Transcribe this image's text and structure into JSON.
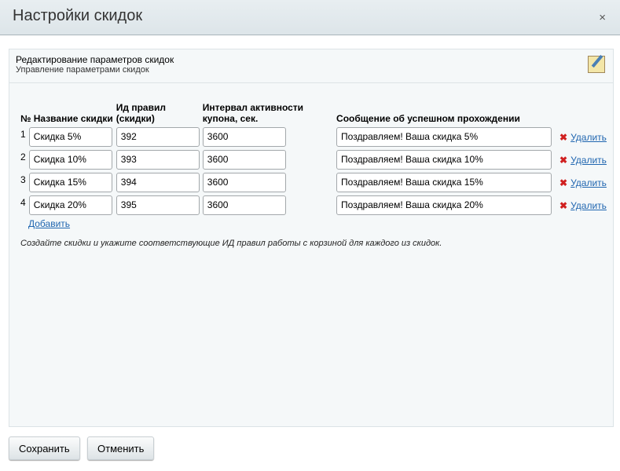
{
  "dialog": {
    "title": "Настройки скидок",
    "close": "×"
  },
  "panel": {
    "title": "Редактирование параметров скидок",
    "subtitle": "Управление параметрами скидок"
  },
  "table": {
    "headers": {
      "num": "№",
      "name": "Название скидки",
      "rule_id_1": "Ид правил",
      "rule_id_2": "(скидки)",
      "interval_1": "Интервал активности",
      "interval_2": "купона, сек.",
      "message": "Сообщение об успешном прохождении"
    },
    "rows": [
      {
        "n": "1",
        "name": "Скидка 5%",
        "rule": "392",
        "interval": "3600",
        "message": "Поздравляем! Ваша скидка 5%"
      },
      {
        "n": "2",
        "name": "Скидка 10%",
        "rule": "393",
        "interval": "3600",
        "message": "Поздравляем! Ваша скидка 10%"
      },
      {
        "n": "3",
        "name": "Скидка 15%",
        "rule": "394",
        "interval": "3600",
        "message": "Поздравляем! Ваша скидка 15%"
      },
      {
        "n": "4",
        "name": "Скидка 20%",
        "rule": "395",
        "interval": "3600",
        "message": "Поздравляем! Ваша скидка 20%"
      }
    ],
    "delete_label": "Удалить",
    "delete_icon": "✖"
  },
  "add_label": "Добавить",
  "note": "Создайте скидки и укажите соответствующие ИД правил работы с корзиной для каждого из скидок.",
  "buttons": {
    "save": "Сохранить",
    "cancel": "Отменить"
  }
}
